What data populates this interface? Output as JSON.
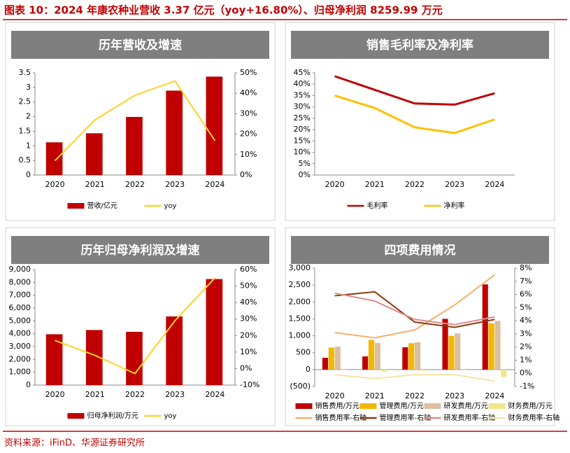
{
  "header": {
    "title": "图表 10：2024 年康农种业营收 3.37 亿元（yoy+16.80%）、归母净利润 8259.99 万元"
  },
  "footer": {
    "source": "资料来源：iFinD、华源证券研究所"
  },
  "chart_data": [
    {
      "type": "combo",
      "title": "历年营收及增速",
      "legend": "bottom",
      "categories": [
        "2020",
        "2021",
        "2022",
        "2023",
        "2024"
      ],
      "series": [
        {
          "name": "营收/亿元",
          "type": "bar",
          "color": "#c00000",
          "values": [
            1.12,
            1.43,
            1.99,
            2.89,
            3.37
          ]
        },
        {
          "name": "yoy",
          "type": "line",
          "axis": "y2",
          "color": "#ffd21f",
          "values": [
            7,
            27,
            39,
            46,
            16.8
          ]
        }
      ],
      "ylim": [
        0,
        3.5
      ],
      "yticks": [
        0,
        0.5,
        1,
        1.5,
        2,
        2.5,
        3,
        3.5
      ],
      "y2lim": [
        0,
        50
      ],
      "y2ticks": [
        {
          "value": 0,
          "label": "0%"
        },
        {
          "value": 10,
          "label": "10%"
        },
        {
          "value": 20,
          "label": "20%"
        },
        {
          "value": 30,
          "label": "30%"
        },
        {
          "value": 40,
          "label": "40%"
        },
        {
          "value": 50,
          "label": "50%"
        }
      ]
    },
    {
      "type": "line",
      "title": "销售毛利率及净利率",
      "legend": "bottom",
      "categories": [
        "2020",
        "2021",
        "2022",
        "2023",
        "2024"
      ],
      "series": [
        {
          "name": "毛利率",
          "type": "line",
          "color": "#c00000",
          "values": [
            43.5,
            37.5,
            31.5,
            31,
            36
          ]
        },
        {
          "name": "净利率",
          "type": "line",
          "color": "#ffc000",
          "values": [
            35,
            29.5,
            21,
            18.5,
            24.5
          ]
        }
      ],
      "ylim": [
        0,
        45
      ],
      "yticks": [
        {
          "value": 0,
          "label": "0%"
        },
        {
          "value": 5,
          "label": "5%"
        },
        {
          "value": 10,
          "label": "10%"
        },
        {
          "value": 15,
          "label": "15%"
        },
        {
          "value": 20,
          "label": "20%"
        },
        {
          "value": 25,
          "label": "25%"
        },
        {
          "value": 30,
          "label": "30%"
        },
        {
          "value": 35,
          "label": "35%"
        },
        {
          "value": 40,
          "label": "40%"
        },
        {
          "value": 45,
          "label": "45%"
        }
      ]
    },
    {
      "type": "combo",
      "title": "历年归母净利润及增速",
      "legend": "bottom",
      "categories": [
        "2020",
        "2021",
        "2022",
        "2023",
        "2024"
      ],
      "series": [
        {
          "name": "归母净利润/万元",
          "type": "bar",
          "color": "#c00000",
          "values": [
            3960,
            4290,
            4150,
            5350,
            8259.99
          ]
        },
        {
          "name": "yoy",
          "type": "line",
          "axis": "y2",
          "color": "#ffd21f",
          "values": [
            17,
            8,
            -3,
            29,
            55
          ]
        }
      ],
      "ylim": [
        0,
        9000
      ],
      "yticks": [
        0,
        {
          "value": 1000,
          "label": "1,000"
        },
        {
          "value": 2000,
          "label": "2,000"
        },
        {
          "value": 3000,
          "label": "3,000"
        },
        {
          "value": 4000,
          "label": "4,000"
        },
        {
          "value": 5000,
          "label": "5,000"
        },
        {
          "value": 6000,
          "label": "6,000"
        },
        {
          "value": 7000,
          "label": "7,000"
        },
        {
          "value": 8000,
          "label": "8,000"
        },
        {
          "value": 9000,
          "label": "9,000"
        }
      ],
      "y2lim": [
        -10,
        60
      ],
      "y2ticks": [
        {
          "value": -10,
          "label": "-10%"
        },
        {
          "value": 0,
          "label": "0%"
        },
        {
          "value": 10,
          "label": "10%"
        },
        {
          "value": 20,
          "label": "20%"
        },
        {
          "value": 30,
          "label": "30%"
        },
        {
          "value": 40,
          "label": "40%"
        },
        {
          "value": 50,
          "label": "50%"
        },
        {
          "value": 60,
          "label": "60%"
        }
      ]
    },
    {
      "type": "combo",
      "title": "四项费用情况",
      "legend": "bottom",
      "categories": [
        "2020",
        "2021",
        "2022",
        "2023",
        "2024"
      ],
      "series": [
        {
          "name": "销售费用/万元",
          "type": "bar",
          "color": "#c00000",
          "values": [
            350,
            390,
            660,
            1500,
            2520
          ]
        },
        {
          "name": "管理费用/万元",
          "type": "bar",
          "color": "#f2b800",
          "values": [
            650,
            880,
            780,
            1000,
            1370
          ]
        },
        {
          "name": "研发费用/万元",
          "type": "bar",
          "color": "#dcbfa0",
          "values": [
            680,
            790,
            810,
            1070,
            1440
          ]
        },
        {
          "name": "财务费用/万元",
          "type": "bar",
          "color": "#f0e68c",
          "values": [
            -10,
            -60,
            -30,
            -20,
            -220
          ]
        },
        {
          "name": "销售费用率-右轴",
          "type": "line",
          "axis": "y2",
          "color": "#f5b06a",
          "values": [
            3.1,
            2.7,
            3.3,
            5.2,
            7.5
          ]
        },
        {
          "name": "管理费用率-右轴",
          "type": "line",
          "axis": "y2",
          "color": "#8b3a0e",
          "values": [
            5.9,
            6.2,
            3.9,
            3.5,
            4.1
          ]
        },
        {
          "name": "研发费用率-右轴",
          "type": "line",
          "axis": "y2",
          "color": "#d98c8c",
          "values": [
            6.1,
            5.5,
            4.1,
            3.7,
            4.3
          ]
        },
        {
          "name": "财务费用率-右轴",
          "type": "line",
          "axis": "y2",
          "color": "#f7e3a8",
          "values": [
            -0.1,
            -0.4,
            -0.1,
            -0.1,
            -0.6
          ]
        }
      ],
      "ylim": [
        -500,
        3000
      ],
      "yticks": [
        {
          "value": -500,
          "label": "(500)"
        },
        0,
        500,
        {
          "value": 1000,
          "label": "1,000"
        },
        {
          "value": 1500,
          "label": "1,500"
        },
        {
          "value": 2000,
          "label": "2,000"
        },
        {
          "value": 2500,
          "label": "2,500"
        },
        {
          "value": 3000,
          "label": "3,000"
        }
      ],
      "y2lim": [
        -1,
        8
      ],
      "y2ticks": [
        {
          "value": -1,
          "label": "-1%"
        },
        {
          "value": 0,
          "label": "0%"
        },
        {
          "value": 1,
          "label": "1%"
        },
        {
          "value": 2,
          "label": "2%"
        },
        {
          "value": 3,
          "label": "3%"
        },
        {
          "value": 4,
          "label": "4%"
        },
        {
          "value": 5,
          "label": "5%"
        },
        {
          "value": 6,
          "label": "6%"
        },
        {
          "value": 7,
          "label": "7%"
        },
        {
          "value": 8,
          "label": "8%"
        }
      ]
    }
  ]
}
